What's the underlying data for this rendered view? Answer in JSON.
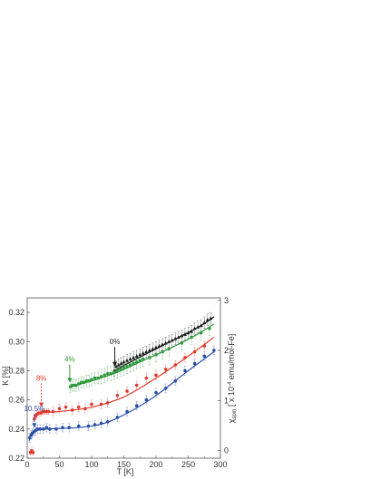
{
  "chart_data": {
    "type": "scatter",
    "xlabel": "T [K]",
    "ylabel_left": "K [%]",
    "ylabel_right_parts": [
      "χ",
      "spin",
      " [ x 10",
      "-4",
      " emu/mol-Fe]"
    ],
    "xlim": [
      0,
      300
    ],
    "ylim_left": [
      0.22,
      0.33
    ],
    "ylim_right": [
      -0.15,
      3.05
    ],
    "x_ticks": [
      "0",
      "50",
      "100",
      "150",
      "200",
      "250",
      "300"
    ],
    "left_ticks": [
      "0.22",
      "0.24",
      "0.26",
      "0.28",
      "0.30",
      "0.32"
    ],
    "right_ticks": [
      "0",
      "1",
      "2",
      "3"
    ],
    "grid": false,
    "series": [
      {
        "name": "0%",
        "color": "#1a1a1a",
        "marker": "triangle",
        "points": [
          [
            135,
            0.28,
            0.004
          ],
          [
            138,
            0.283,
            0.004
          ],
          [
            142,
            0.284,
            0.004
          ],
          [
            146,
            0.285,
            0.004
          ],
          [
            150,
            0.286,
            0.004
          ],
          [
            155,
            0.287,
            0.004
          ],
          [
            160,
            0.288,
            0.004
          ],
          [
            165,
            0.289,
            0.004
          ],
          [
            170,
            0.29,
            0.004
          ],
          [
            175,
            0.291,
            0.004
          ],
          [
            180,
            0.292,
            0.004
          ],
          [
            185,
            0.293,
            0.004
          ],
          [
            190,
            0.294,
            0.004
          ],
          [
            195,
            0.295,
            0.004
          ],
          [
            200,
            0.296,
            0.004
          ],
          [
            205,
            0.297,
            0.004
          ],
          [
            210,
            0.298,
            0.004
          ],
          [
            215,
            0.299,
            0.004
          ],
          [
            220,
            0.3,
            0.004
          ],
          [
            225,
            0.301,
            0.004
          ],
          [
            230,
            0.302,
            0.004
          ],
          [
            235,
            0.303,
            0.004
          ],
          [
            240,
            0.304,
            0.004
          ],
          [
            245,
            0.305,
            0.004
          ],
          [
            250,
            0.306,
            0.004
          ],
          [
            255,
            0.307,
            0.004
          ],
          [
            260,
            0.309,
            0.004
          ],
          [
            265,
            0.31,
            0.004
          ],
          [
            270,
            0.311,
            0.004
          ],
          [
            275,
            0.313,
            0.004
          ],
          [
            280,
            0.315,
            0.004
          ],
          [
            285,
            0.316,
            0.004
          ]
        ],
        "line": [
          [
            135,
            0.28
          ],
          [
            160,
            0.286
          ],
          [
            200,
            0.295
          ],
          [
            240,
            0.304
          ],
          [
            270,
            0.311
          ],
          [
            290,
            0.317
          ]
        ]
      },
      {
        "name": "4%",
        "color": "#2e9a3c",
        "marker": "square",
        "points": [
          [
            67,
            0.269,
            0.004
          ],
          [
            70,
            0.27,
            0.004
          ],
          [
            73,
            0.27,
            0.004
          ],
          [
            76,
            0.27,
            0.004
          ],
          [
            80,
            0.271,
            0.004
          ],
          [
            84,
            0.272,
            0.004
          ],
          [
            88,
            0.272,
            0.004
          ],
          [
            92,
            0.273,
            0.004
          ],
          [
            96,
            0.273,
            0.004
          ],
          [
            100,
            0.274,
            0.004
          ],
          [
            105,
            0.275,
            0.004
          ],
          [
            110,
            0.275,
            0.004
          ],
          [
            115,
            0.276,
            0.005
          ],
          [
            120,
            0.277,
            0.005
          ],
          [
            125,
            0.278,
            0.005
          ],
          [
            130,
            0.278,
            0.005
          ],
          [
            135,
            0.279,
            0.005
          ],
          [
            140,
            0.28,
            0.005
          ],
          [
            145,
            0.281,
            0.005
          ],
          [
            150,
            0.282,
            0.005
          ],
          [
            155,
            0.283,
            0.005
          ],
          [
            160,
            0.284,
            0.005
          ],
          [
            165,
            0.285,
            0.005
          ],
          [
            170,
            0.286,
            0.005
          ],
          [
            175,
            0.287,
            0.005
          ],
          [
            180,
            0.288,
            0.005
          ],
          [
            190,
            0.289,
            0.005
          ],
          [
            200,
            0.291,
            0.005
          ],
          [
            210,
            0.293,
            0.005
          ],
          [
            220,
            0.295,
            0.005
          ],
          [
            240,
            0.299,
            0.005
          ],
          [
            255,
            0.303,
            0.005
          ],
          [
            270,
            0.306,
            0.005
          ],
          [
            283,
            0.309,
            0.005
          ]
        ],
        "line": [
          [
            67,
            0.269
          ],
          [
            100,
            0.273
          ],
          [
            140,
            0.279
          ],
          [
            180,
            0.287
          ],
          [
            220,
            0.295
          ],
          [
            260,
            0.304
          ],
          [
            290,
            0.312
          ]
        ]
      },
      {
        "name": "8%",
        "color": "#e03a2e",
        "marker": "circle",
        "points": [
          [
            5,
            0.224,
            0.002
          ],
          [
            7,
            0.225,
            0.002
          ],
          [
            9,
            0.224,
            0.002
          ],
          [
            11,
            0.247,
            0.002
          ],
          [
            13,
            0.249,
            0.002
          ],
          [
            15,
            0.25,
            0.002
          ],
          [
            18,
            0.251,
            0.002
          ],
          [
            21,
            0.251,
            0.002
          ],
          [
            24,
            0.252,
            0.002
          ],
          [
            27,
            0.252,
            0.002
          ],
          [
            30,
            0.252,
            0.002
          ],
          [
            33,
            0.252,
            0.002
          ],
          [
            40,
            0.252,
            0.003
          ],
          [
            50,
            0.254,
            0.003
          ],
          [
            60,
            0.255,
            0.003
          ],
          [
            70,
            0.253,
            0.003
          ],
          [
            80,
            0.255,
            0.003
          ],
          [
            90,
            0.254,
            0.003
          ],
          [
            100,
            0.257,
            0.003
          ],
          [
            115,
            0.257,
            0.003
          ],
          [
            125,
            0.258,
            0.003
          ],
          [
            140,
            0.263,
            0.003
          ],
          [
            155,
            0.266,
            0.003
          ],
          [
            170,
            0.27,
            0.003
          ],
          [
            185,
            0.275,
            0.003
          ],
          [
            200,
            0.277,
            0.003
          ],
          [
            215,
            0.281,
            0.003
          ],
          [
            230,
            0.284,
            0.003
          ],
          [
            245,
            0.289,
            0.003
          ],
          [
            260,
            0.293,
            0.003
          ],
          [
            275,
            0.297,
            0.003
          ]
        ],
        "line": [
          [
            10,
            0.247
          ],
          [
            20,
            0.251
          ],
          [
            50,
            0.252
          ],
          [
            100,
            0.255
          ],
          [
            150,
            0.262
          ],
          [
            200,
            0.275
          ],
          [
            250,
            0.29
          ],
          [
            290,
            0.303
          ]
        ]
      },
      {
        "name": "10.5%",
        "color": "#2a4fa8",
        "marker": "circle",
        "points": [
          [
            4,
            0.234,
            0.003
          ],
          [
            6,
            0.236,
            0.003
          ],
          [
            8,
            0.237,
            0.003
          ],
          [
            10,
            0.238,
            0.003
          ],
          [
            13,
            0.239,
            0.003
          ],
          [
            16,
            0.24,
            0.003
          ],
          [
            20,
            0.24,
            0.003
          ],
          [
            25,
            0.24,
            0.003
          ],
          [
            30,
            0.241,
            0.003
          ],
          [
            35,
            0.24,
            0.003
          ],
          [
            45,
            0.24,
            0.003
          ],
          [
            55,
            0.241,
            0.003
          ],
          [
            65,
            0.241,
            0.003
          ],
          [
            80,
            0.242,
            0.003
          ],
          [
            95,
            0.242,
            0.003
          ],
          [
            105,
            0.243,
            0.003
          ],
          [
            115,
            0.244,
            0.003
          ],
          [
            125,
            0.245,
            0.003
          ],
          [
            140,
            0.248,
            0.003
          ],
          [
            155,
            0.252,
            0.003
          ],
          [
            170,
            0.256,
            0.003
          ],
          [
            185,
            0.26,
            0.003
          ],
          [
            200,
            0.265,
            0.003
          ],
          [
            215,
            0.268,
            0.003
          ],
          [
            230,
            0.273,
            0.003
          ],
          [
            245,
            0.28,
            0.003
          ],
          [
            260,
            0.285,
            0.003
          ],
          [
            275,
            0.29,
            0.003
          ],
          [
            290,
            0.294,
            0.003
          ]
        ],
        "line": [
          [
            3,
            0.232
          ],
          [
            10,
            0.238
          ],
          [
            30,
            0.24
          ],
          [
            80,
            0.241
          ],
          [
            120,
            0.244
          ],
          [
            160,
            0.252
          ],
          [
            200,
            0.263
          ],
          [
            250,
            0.28
          ],
          [
            290,
            0.293
          ]
        ]
      }
    ],
    "annotations": [
      {
        "text": "0%",
        "color": "#1a1a1a",
        "x": 136,
        "y": 0.297,
        "arrow_to": 0.283,
        "dashed": false
      },
      {
        "text": "4%",
        "color": "#2e9a3c",
        "x": 66,
        "y": 0.285,
        "arrow_to": 0.272,
        "dashed": false
      },
      {
        "text": "8%",
        "color": "#e03a2e",
        "x": 22,
        "y": 0.272,
        "arrow_to": 0.255,
        "dashed": true
      },
      {
        "text": "10.5%",
        "color": "#2a4fa8",
        "x": 11,
        "y": 0.251,
        "arrow_to": 0.241,
        "dashed": true
      }
    ]
  }
}
